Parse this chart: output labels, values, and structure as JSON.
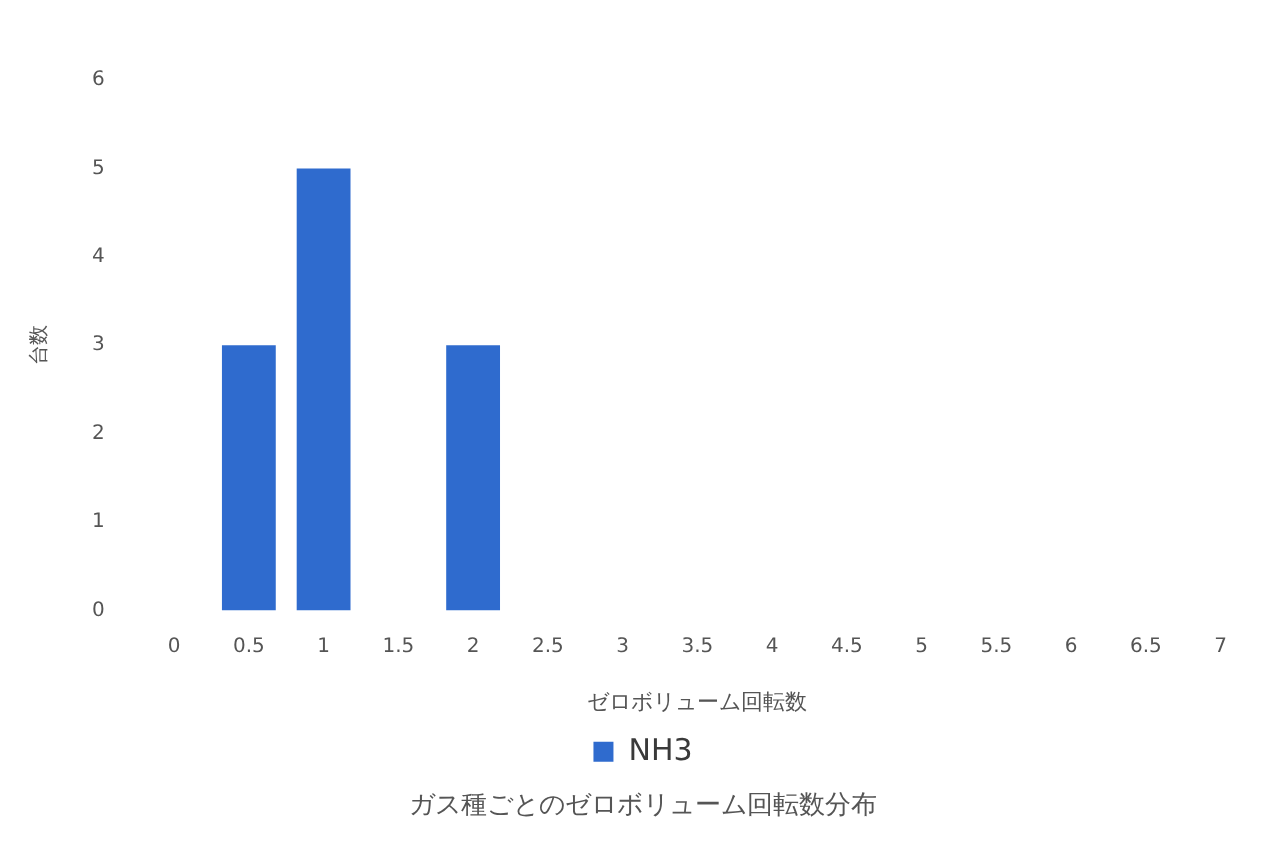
{
  "chart_data": {
    "type": "bar",
    "title": "ガス種ごとのゼロボリューム回転数分布",
    "xlabel": "ゼロボリューム回転数",
    "ylabel": "台数",
    "categories": [
      "0",
      "0.5",
      "1",
      "1.5",
      "2",
      "2.5",
      "3",
      "3.5",
      "4",
      "4.5",
      "5",
      "5.5",
      "6",
      "6.5",
      "7"
    ],
    "series": [
      {
        "name": "NH3",
        "color": "#2f6bce",
        "values": [
          0,
          3,
          5,
          0,
          3,
          0,
          0,
          0,
          0,
          0,
          0,
          0,
          0,
          0,
          0
        ]
      }
    ],
    "ylim": [
      0,
      6
    ],
    "yticks": [
      0,
      1,
      2,
      3,
      4,
      5,
      6
    ],
    "grid": false,
    "legend": "bottom"
  }
}
